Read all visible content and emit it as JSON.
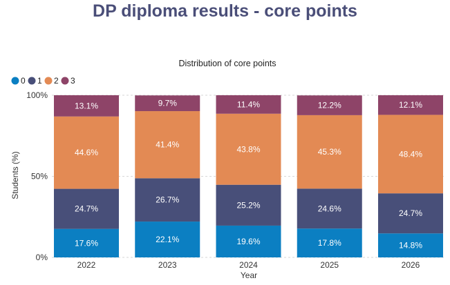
{
  "page": {
    "title": "DP diploma results - core points"
  },
  "chart_data": {
    "type": "bar",
    "stacked": true,
    "normalized": true,
    "title": "Distribution of core points",
    "xlabel": "Year",
    "ylabel": "Students (%)",
    "ylim": [
      0,
      100
    ],
    "yticks": [
      "0%",
      "50%",
      "100%"
    ],
    "grid": true,
    "legend_position": "top-left",
    "categories": [
      "2022",
      "2023",
      "2024",
      "2025",
      "2026"
    ],
    "series": [
      {
        "name": "0",
        "color": "#0b7fc2",
        "values": [
          17.6,
          22.1,
          19.6,
          17.8,
          14.8
        ],
        "labels": [
          "17.6%",
          "22.1%",
          "19.6%",
          "17.8%",
          "14.8%"
        ]
      },
      {
        "name": "1",
        "color": "#484f79",
        "values": [
          24.7,
          26.7,
          25.2,
          24.6,
          24.7
        ],
        "labels": [
          "24.7%",
          "26.7%",
          "25.2%",
          "24.6%",
          "24.7%"
        ]
      },
      {
        "name": "2",
        "color": "#e38a54",
        "values": [
          44.6,
          41.4,
          43.8,
          45.3,
          48.4
        ],
        "labels": [
          "44.6%",
          "41.4%",
          "43.8%",
          "45.3%",
          "48.4%"
        ]
      },
      {
        "name": "3",
        "color": "#8e4468",
        "values": [
          13.1,
          9.7,
          11.4,
          12.2,
          12.1
        ],
        "labels": [
          "13.1%",
          "9.7%",
          "11.4%",
          "12.2%",
          "12.1%"
        ]
      }
    ]
  }
}
